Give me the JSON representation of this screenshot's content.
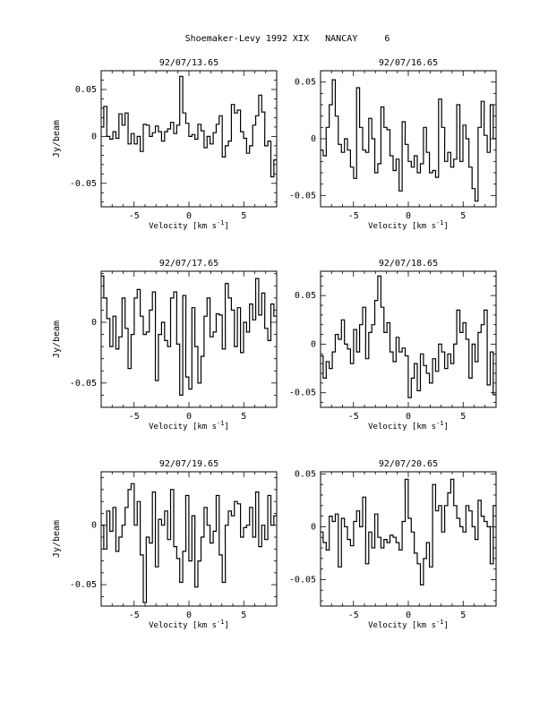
{
  "page_title": "Shoemaker-Levy 1992 XIX   NANCAY     6",
  "chart_data": [
    {
      "type": "line",
      "title": "92/07/13.65",
      "xlabel": "Velocity [km s",
      "xlabel_sup": "-1",
      "xlabel_close": "]",
      "ylabel": "Jy/beam",
      "xlim": [
        -8,
        8
      ],
      "ylim": [
        -0.075,
        0.07
      ],
      "xticks": [
        -5,
        0,
        5
      ],
      "xtick_labels": [
        "-5",
        "0",
        "5"
      ],
      "yticks": [
        0.05,
        0,
        -0.05
      ],
      "ytick_labels": [
        "0.05",
        "0",
        "-0.05"
      ],
      "series": [
        {
          "x": [
            -7.9,
            -7.62,
            -7.35,
            -7.07,
            -6.79,
            -6.52,
            -6.24,
            -5.96,
            -5.68,
            -5.41,
            -5.13,
            -4.85,
            -4.58,
            -4.3,
            -4.02,
            -3.75,
            -3.47,
            -3.19,
            -2.92,
            -2.64,
            -2.36,
            -2.08,
            -1.81,
            -1.53,
            -1.25,
            -0.98,
            -0.7,
            -0.42,
            -0.15,
            0.13,
            0.41,
            0.68,
            0.96,
            1.24,
            1.52,
            1.79,
            2.07,
            2.35,
            2.62,
            2.9,
            3.18,
            3.45,
            3.73,
            4.01,
            4.28,
            4.56,
            4.84,
            5.12,
            5.39,
            5.67,
            5.95,
            6.22,
            6.5,
            6.78,
            7.05,
            7.33,
            7.61,
            7.88
          ],
          "y": [
            0.01,
            0.032,
            0.0,
            -0.003,
            0.005,
            -0.002,
            0.024,
            0.012,
            0.025,
            -0.008,
            0.003,
            -0.008,
            0.0,
            -0.016,
            0.013,
            0.012,
            0.0,
            0.004,
            0.011,
            0.005,
            -0.005,
            0.005,
            0.008,
            0.015,
            0.003,
            0.012,
            0.064,
            0.025,
            0.014,
            0.0,
            0.002,
            -0.003,
            0.013,
            0.006,
            -0.012,
            0.0,
            -0.008,
            0.004,
            0.013,
            0.022,
            -0.022,
            -0.01,
            -0.005,
            0.034,
            0.025,
            0.028,
            0.005,
            -0.002,
            -0.018,
            -0.01,
            0.012,
            0.022,
            0.044,
            0.026,
            -0.01,
            -0.005,
            -0.043,
            -0.025
          ]
        }
      ]
    },
    {
      "type": "line",
      "title": "92/07/16.65",
      "xlabel": "Velocity [km s",
      "xlabel_sup": "-1",
      "xlabel_close": "]",
      "ylabel": "",
      "xlim": [
        -8,
        8
      ],
      "ylim": [
        -0.06,
        0.06
      ],
      "xticks": [
        -5,
        0,
        5
      ],
      "xtick_labels": [
        "-5",
        "0",
        "5"
      ],
      "yticks": [
        0.05,
        0,
        -0.05
      ],
      "ytick_labels": [
        "0.05",
        "0",
        "-0.05"
      ],
      "series": [
        {
          "x": [
            -7.9,
            -7.62,
            -7.35,
            -7.07,
            -6.79,
            -6.52,
            -6.24,
            -5.96,
            -5.68,
            -5.41,
            -5.13,
            -4.85,
            -4.58,
            -4.3,
            -4.02,
            -3.75,
            -3.47,
            -3.19,
            -2.92,
            -2.64,
            -2.36,
            -2.08,
            -1.81,
            -1.53,
            -1.25,
            -0.98,
            -0.7,
            -0.42,
            -0.15,
            0.13,
            0.41,
            0.68,
            0.96,
            1.24,
            1.52,
            1.79,
            2.07,
            2.35,
            2.62,
            2.9,
            3.18,
            3.45,
            3.73,
            4.01,
            4.28,
            4.56,
            4.84,
            5.12,
            5.39,
            5.67,
            5.95,
            6.22,
            6.5,
            6.78,
            7.05,
            7.33,
            7.61,
            7.88
          ],
          "y": [
            -0.01,
            -0.015,
            0.01,
            0.03,
            0.052,
            0.02,
            -0.005,
            -0.012,
            0.0,
            -0.01,
            -0.025,
            -0.035,
            0.045,
            0.01,
            -0.01,
            -0.012,
            0.018,
            0.0,
            -0.03,
            -0.022,
            0.028,
            0.01,
            0.008,
            -0.015,
            -0.028,
            -0.018,
            -0.046,
            0.015,
            -0.005,
            -0.02,
            -0.025,
            -0.015,
            -0.03,
            -0.022,
            0.01,
            -0.012,
            -0.03,
            -0.028,
            -0.034,
            0.035,
            0.01,
            -0.02,
            -0.012,
            -0.025,
            -0.018,
            0.03,
            -0.02,
            0.012,
            0.0,
            -0.025,
            -0.044,
            -0.055,
            0.01,
            0.033,
            0.003,
            -0.012,
            0.03,
            0.0
          ]
        }
      ]
    },
    {
      "type": "line",
      "title": "92/07/17.65",
      "xlabel": "Velocity [km s",
      "xlabel_sup": "-1",
      "xlabel_close": "]",
      "ylabel": "Jy/beam",
      "xlim": [
        -8,
        8
      ],
      "ylim": [
        -0.07,
        0.042
      ],
      "xticks": [
        -5,
        0,
        5
      ],
      "xtick_labels": [
        "-5",
        "0",
        "5"
      ],
      "yticks": [
        0,
        -0.05
      ],
      "ytick_labels": [
        "0",
        "-0.05"
      ],
      "series": [
        {
          "x": [
            -7.9,
            -7.62,
            -7.35,
            -7.07,
            -6.79,
            -6.52,
            -6.24,
            -5.96,
            -5.68,
            -5.41,
            -5.13,
            -4.85,
            -4.58,
            -4.3,
            -4.02,
            -3.75,
            -3.47,
            -3.19,
            -2.92,
            -2.64,
            -2.36,
            -2.08,
            -1.81,
            -1.53,
            -1.25,
            -0.98,
            -0.7,
            -0.42,
            -0.15,
            0.13,
            0.41,
            0.68,
            0.96,
            1.24,
            1.52,
            1.79,
            2.07,
            2.35,
            2.62,
            2.9,
            3.18,
            3.45,
            3.73,
            4.01,
            4.28,
            4.56,
            4.84,
            5.12,
            5.39,
            5.67,
            5.95,
            6.22,
            6.5,
            6.78,
            7.05,
            7.33,
            7.61,
            7.88
          ],
          "y": [
            0.038,
            0.02,
            0.003,
            -0.02,
            0.005,
            -0.022,
            -0.012,
            0.02,
            -0.005,
            -0.038,
            -0.01,
            0.02,
            0.027,
            0.005,
            -0.01,
            -0.008,
            0.01,
            0.025,
            -0.048,
            -0.01,
            0.0,
            -0.015,
            -0.02,
            0.02,
            0.025,
            -0.018,
            -0.06,
            0.022,
            -0.045,
            -0.055,
            0.012,
            -0.02,
            -0.05,
            -0.028,
            0.005,
            0.02,
            -0.012,
            -0.008,
            0.007,
            0.006,
            -0.022,
            0.032,
            0.02,
            0.01,
            -0.02,
            0.012,
            -0.025,
            0.0,
            -0.008,
            0.015,
            0.002,
            0.036,
            0.006,
            0.024,
            -0.005,
            -0.015,
            0.015,
            0.005
          ]
        }
      ]
    },
    {
      "type": "line",
      "title": "92/07/18.65",
      "xlabel": "Velocity [km s",
      "xlabel_sup": "-1",
      "xlabel_close": "]",
      "ylabel": "",
      "xlim": [
        -8,
        8
      ],
      "ylim": [
        -0.065,
        0.075
      ],
      "xticks": [
        -5,
        0,
        5
      ],
      "xtick_labels": [
        "-5",
        "0",
        "5"
      ],
      "yticks": [
        0.05,
        0,
        -0.05
      ],
      "ytick_labels": [
        "0.05",
        "0",
        "-0.05"
      ],
      "series": [
        {
          "x": [
            -7.9,
            -7.62,
            -7.35,
            -7.07,
            -6.79,
            -6.52,
            -6.24,
            -5.96,
            -5.68,
            -5.41,
            -5.13,
            -4.85,
            -4.58,
            -4.3,
            -4.02,
            -3.75,
            -3.47,
            -3.19,
            -2.92,
            -2.64,
            -2.36,
            -2.08,
            -1.81,
            -1.53,
            -1.25,
            -0.98,
            -0.7,
            -0.42,
            -0.15,
            0.13,
            0.41,
            0.68,
            0.96,
            1.24,
            1.52,
            1.79,
            2.07,
            2.35,
            2.62,
            2.9,
            3.18,
            3.45,
            3.73,
            4.01,
            4.28,
            4.56,
            4.84,
            5.12,
            5.39,
            5.67,
            5.95,
            6.22,
            6.5,
            6.78,
            7.05,
            7.33,
            7.61,
            7.88
          ],
          "y": [
            -0.012,
            -0.035,
            -0.018,
            -0.025,
            -0.008,
            0.01,
            0.005,
            0.025,
            0.0,
            -0.005,
            -0.02,
            0.015,
            -0.008,
            0.02,
            0.038,
            -0.015,
            0.012,
            0.02,
            0.045,
            0.07,
            0.038,
            0.012,
            0.022,
            -0.008,
            -0.018,
            0.007,
            -0.008,
            -0.004,
            -0.012,
            -0.055,
            -0.035,
            -0.02,
            -0.048,
            -0.01,
            -0.022,
            -0.03,
            -0.04,
            -0.015,
            -0.028,
            0.0,
            -0.008,
            -0.025,
            -0.01,
            -0.02,
            0.0,
            0.035,
            0.012,
            0.022,
            0.005,
            -0.035,
            0.0,
            -0.018,
            0.012,
            0.02,
            0.035,
            -0.042,
            -0.008,
            -0.052
          ]
        }
      ]
    },
    {
      "type": "line",
      "title": "92/07/19.65",
      "xlabel": "Velocity [km s",
      "xlabel_sup": "-1",
      "xlabel_close": "]",
      "ylabel": "Jy/beam",
      "xlim": [
        -8,
        8
      ],
      "ylim": [
        -0.068,
        0.045
      ],
      "xticks": [
        -5,
        0,
        5
      ],
      "xtick_labels": [
        "-5",
        "0",
        "5"
      ],
      "yticks": [
        0,
        -0.05
      ],
      "ytick_labels": [
        "0",
        "-0.05"
      ],
      "series": [
        {
          "x": [
            -7.9,
            -7.62,
            -7.35,
            -7.07,
            -6.79,
            -6.52,
            -6.24,
            -5.96,
            -5.68,
            -5.41,
            -5.13,
            -4.85,
            -4.58,
            -4.3,
            -4.02,
            -3.75,
            -3.47,
            -3.19,
            -2.92,
            -2.64,
            -2.36,
            -2.08,
            -1.81,
            -1.53,
            -1.25,
            -0.98,
            -0.7,
            -0.42,
            -0.15,
            0.13,
            0.41,
            0.68,
            0.96,
            1.24,
            1.52,
            1.79,
            2.07,
            2.35,
            2.62,
            2.9,
            3.18,
            3.45,
            3.73,
            4.01,
            4.28,
            4.56,
            4.84,
            5.12,
            5.39,
            5.67,
            5.95,
            6.22,
            6.5,
            6.78,
            7.05,
            7.33,
            7.61,
            7.88
          ],
          "y": [
            0.0,
            -0.02,
            0.012,
            -0.005,
            0.015,
            -0.022,
            -0.01,
            0.0,
            0.015,
            0.03,
            0.035,
            0.0,
            0.02,
            -0.025,
            -0.065,
            -0.01,
            -0.015,
            0.028,
            -0.035,
            0.005,
            0.0,
            0.012,
            -0.012,
            0.03,
            -0.018,
            -0.028,
            -0.048,
            -0.022,
            0.025,
            -0.03,
            0.008,
            -0.052,
            -0.03,
            -0.01,
            0.015,
            0.0,
            -0.015,
            -0.005,
            0.025,
            -0.025,
            -0.048,
            0.0,
            0.012,
            0.008,
            0.02,
            0.018,
            -0.01,
            -0.002,
            0.0,
            0.015,
            -0.01,
            0.028,
            -0.018,
            0.0,
            -0.012,
            0.025,
            0.0,
            0.008
          ]
        }
      ]
    },
    {
      "type": "line",
      "title": "92/07/20.65",
      "xlabel": "Velocity [km s",
      "xlabel_sup": "-1",
      "xlabel_close": "]",
      "ylabel": "",
      "xlim": [
        -8,
        8
      ],
      "ylim": [
        -0.075,
        0.052
      ],
      "xticks": [
        -5,
        0,
        5
      ],
      "xtick_labels": [
        "-5",
        "0",
        "5"
      ],
      "yticks": [
        0.05,
        0,
        -0.05
      ],
      "ytick_labels": [
        "0.05",
        "0",
        "-0.05"
      ],
      "series": [
        {
          "x": [
            -7.9,
            -7.62,
            -7.35,
            -7.07,
            -6.79,
            -6.52,
            -6.24,
            -5.96,
            -5.68,
            -5.41,
            -5.13,
            -4.85,
            -4.58,
            -4.3,
            -4.02,
            -3.75,
            -3.47,
            -3.19,
            -2.92,
            -2.64,
            -2.36,
            -2.08,
            -1.81,
            -1.53,
            -1.25,
            -0.98,
            -0.7,
            -0.42,
            -0.15,
            0.13,
            0.41,
            0.68,
            0.96,
            1.24,
            1.52,
            1.79,
            2.07,
            2.35,
            2.62,
            2.9,
            3.18,
            3.45,
            3.73,
            4.01,
            4.28,
            4.56,
            4.84,
            5.12,
            5.39,
            5.67,
            5.95,
            6.22,
            6.5,
            6.78,
            7.05,
            7.33,
            7.61,
            7.88
          ],
          "y": [
            -0.005,
            -0.015,
            -0.022,
            0.01,
            0.005,
            0.012,
            -0.038,
            0.008,
            0.0,
            -0.012,
            -0.018,
            0.005,
            0.015,
            0.0,
            0.028,
            -0.035,
            -0.005,
            -0.02,
            0.012,
            -0.01,
            -0.02,
            -0.012,
            -0.015,
            -0.008,
            -0.01,
            -0.015,
            -0.022,
            0.005,
            0.045,
            0.008,
            -0.005,
            -0.025,
            -0.035,
            -0.055,
            -0.03,
            -0.015,
            -0.038,
            0.04,
            0.015,
            0.02,
            -0.005,
            0.02,
            0.032,
            0.045,
            0.02,
            0.008,
            0.0,
            -0.005,
            0.02,
            0.015,
            0.0,
            -0.012,
            0.025,
            0.01,
            0.005,
            0.0,
            -0.035,
            0.02
          ]
        }
      ]
    }
  ]
}
